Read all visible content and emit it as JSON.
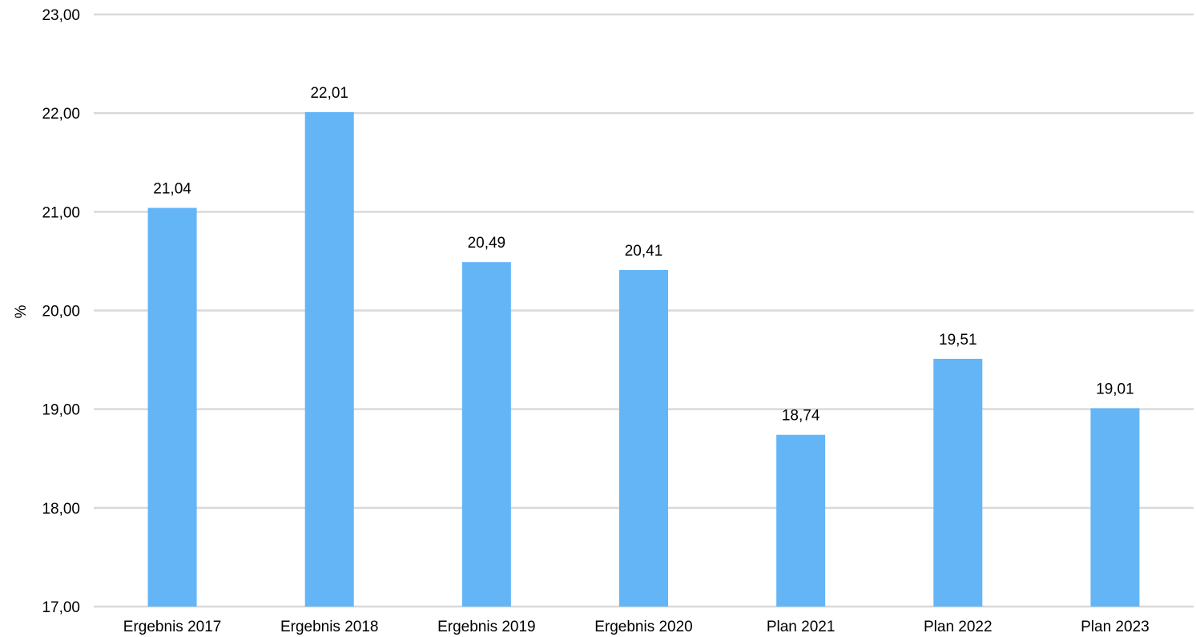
{
  "chart_data": {
    "type": "bar",
    "categories": [
      "Ergebnis 2017",
      "Ergebnis 2018",
      "Ergebnis 2019",
      "Ergebnis 2020",
      "Plan 2021",
      "Plan 2022",
      "Plan 2023"
    ],
    "values": [
      21.04,
      22.01,
      20.49,
      20.41,
      18.74,
      19.51,
      19.01
    ],
    "data_labels": [
      "21,04",
      "22,01",
      "20,49",
      "20,41",
      "18,74",
      "19,51",
      "19,01"
    ],
    "ylabel": "%",
    "ylim": [
      17,
      23
    ],
    "yticks": [
      17,
      18,
      19,
      20,
      21,
      22,
      23
    ],
    "ytick_labels": [
      "17,00",
      "18,00",
      "19,00",
      "20,00",
      "21,00",
      "22,00",
      "23,00"
    ],
    "grid": true,
    "bar_color": "#64b5f6"
  }
}
